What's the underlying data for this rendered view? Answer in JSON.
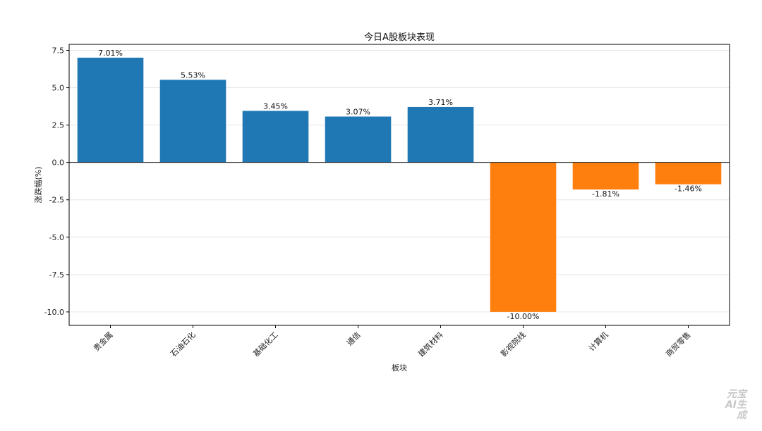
{
  "chart_data": {
    "type": "bar",
    "title": "今日A股板块表现",
    "xlabel": "板块",
    "ylabel": "涨跌幅(%)",
    "categories": [
      "贵金属",
      "石油石化",
      "基础化工",
      "通信",
      "建筑材料",
      "影视院线",
      "计算机",
      "商贸零售"
    ],
    "values": [
      7.01,
      5.53,
      3.45,
      3.07,
      3.71,
      -10.0,
      -1.81,
      -1.46
    ],
    "data_labels": [
      "7.01%",
      "5.53%",
      "3.45%",
      "3.07%",
      "3.71%",
      "-10.00%",
      "-1.81%",
      "-1.46%"
    ],
    "ylim": [
      -10.9,
      7.9
    ],
    "yticks": [
      7.5,
      5.0,
      2.5,
      0.0,
      -2.5,
      -5.0,
      -7.5,
      -10.0
    ],
    "ytick_labels": [
      "7.5",
      "5.0",
      "2.5",
      "0.0",
      "-2.5",
      "-5.0",
      "-7.5",
      "-10.0"
    ],
    "grid": "horizontal",
    "colors": {
      "positive": "#1f77b4",
      "negative": "#ff7f0e"
    }
  },
  "watermark": {
    "line1": "元宝",
    "line2": "AI生成"
  }
}
